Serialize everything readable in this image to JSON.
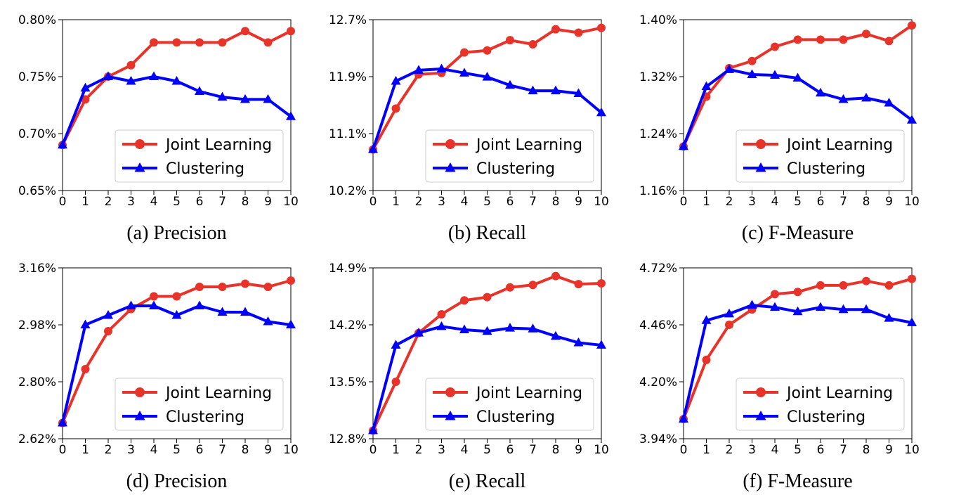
{
  "chart_data": [
    {
      "type": "line",
      "caption": "(a) Precision",
      "x": [
        0,
        1,
        2,
        3,
        4,
        5,
        6,
        7,
        8,
        9,
        10
      ],
      "yticks": [
        "0.65%",
        "0.70%",
        "0.75%",
        "0.80%"
      ],
      "ylim": [
        0.65,
        0.8
      ],
      "series": [
        {
          "name": "Joint Learning",
          "color": "#e8332a",
          "marker": "circle",
          "values": [
            0.69,
            0.73,
            0.75,
            0.76,
            0.78,
            0.78,
            0.78,
            0.78,
            0.79,
            0.78,
            0.79
          ]
        },
        {
          "name": "Clustering",
          "color": "#0000ff",
          "marker": "triangle",
          "values": [
            0.69,
            0.74,
            0.75,
            0.746,
            0.75,
            0.746,
            0.737,
            0.732,
            0.73,
            0.73,
            0.715
          ]
        }
      ],
      "legend": "lower-right",
      "grid": false
    },
    {
      "type": "line",
      "caption": "(b) Recall",
      "x": [
        0,
        1,
        2,
        3,
        4,
        5,
        6,
        7,
        8,
        9,
        10
      ],
      "yticks": [
        "10.2%",
        "11.1%",
        "11.9%",
        "12.7%"
      ],
      "ylim": [
        10.2,
        12.7
      ],
      "series": [
        {
          "name": "Joint Learning",
          "color": "#e8332a",
          "marker": "circle",
          "values": [
            10.8,
            11.4,
            11.9,
            11.92,
            12.22,
            12.25,
            12.4,
            12.34,
            12.56,
            12.51,
            12.58
          ]
        },
        {
          "name": "Clustering",
          "color": "#0000ff",
          "marker": "triangle",
          "values": [
            10.8,
            11.8,
            11.96,
            11.98,
            11.92,
            11.86,
            11.74,
            11.66,
            11.66,
            11.62,
            11.34
          ]
        }
      ],
      "legend": "lower-right",
      "grid": false
    },
    {
      "type": "line",
      "caption": "(c) F-Measure",
      "x": [
        0,
        1,
        2,
        3,
        4,
        5,
        6,
        7,
        8,
        9,
        10
      ],
      "yticks": [
        "1.16%",
        "1.24%",
        "1.32%",
        "1.40%"
      ],
      "ylim": [
        1.16,
        1.4
      ],
      "series": [
        {
          "name": "Joint Learning",
          "color": "#e8332a",
          "marker": "circle",
          "values": [
            1.222,
            1.292,
            1.332,
            1.342,
            1.362,
            1.372,
            1.372,
            1.372,
            1.38,
            1.37,
            1.392
          ]
        },
        {
          "name": "Clustering",
          "color": "#0000ff",
          "marker": "triangle",
          "values": [
            1.222,
            1.306,
            1.33,
            1.323,
            1.322,
            1.318,
            1.297,
            1.288,
            1.29,
            1.283,
            1.259
          ]
        }
      ],
      "legend": "lower-right",
      "grid": false
    },
    {
      "type": "line",
      "caption": "(d) Precision",
      "x": [
        0,
        1,
        2,
        3,
        4,
        5,
        6,
        7,
        8,
        9,
        10
      ],
      "yticks": [
        "2.62%",
        "2.80%",
        "2.98%",
        "3.16%"
      ],
      "ylim": [
        2.62,
        3.16
      ],
      "series": [
        {
          "name": "Joint Learning",
          "color": "#e8332a",
          "marker": "circle",
          "values": [
            2.67,
            2.84,
            2.96,
            3.03,
            3.07,
            3.07,
            3.1,
            3.1,
            3.11,
            3.1,
            3.12
          ]
        },
        {
          "name": "Clustering",
          "color": "#0000ff",
          "marker": "triangle",
          "values": [
            2.67,
            2.98,
            3.01,
            3.04,
            3.04,
            3.01,
            3.04,
            3.02,
            3.02,
            2.99,
            2.98
          ]
        }
      ],
      "legend": "lower-right",
      "grid": false
    },
    {
      "type": "line",
      "caption": "(e) Recall",
      "x": [
        0,
        1,
        2,
        3,
        4,
        5,
        6,
        7,
        8,
        9,
        10
      ],
      "yticks": [
        "12.8%",
        "13.5%",
        "14.2%",
        "14.9%"
      ],
      "ylim": [
        12.8,
        14.9
      ],
      "series": [
        {
          "name": "Joint Learning",
          "color": "#e8332a",
          "marker": "circle",
          "values": [
            12.9,
            13.5,
            14.1,
            14.33,
            14.5,
            14.54,
            14.66,
            14.69,
            14.8,
            14.7,
            14.71
          ]
        },
        {
          "name": "Clustering",
          "color": "#0000ff",
          "marker": "triangle",
          "values": [
            12.9,
            13.95,
            14.1,
            14.18,
            14.14,
            14.12,
            14.16,
            14.15,
            14.06,
            13.98,
            13.95
          ]
        }
      ],
      "legend": "lower-right",
      "grid": false
    },
    {
      "type": "line",
      "caption": "(f) F-Measure",
      "x": [
        0,
        1,
        2,
        3,
        4,
        5,
        6,
        7,
        8,
        9,
        10
      ],
      "yticks": [
        "3.94%",
        "4.20%",
        "4.46%",
        "4.72%"
      ],
      "ylim": [
        3.94,
        4.72
      ],
      "series": [
        {
          "name": "Joint Learning",
          "color": "#e8332a",
          "marker": "circle",
          "values": [
            4.03,
            4.3,
            4.46,
            4.53,
            4.6,
            4.61,
            4.64,
            4.64,
            4.66,
            4.64,
            4.67
          ]
        },
        {
          "name": "Clustering",
          "color": "#0000ff",
          "marker": "triangle",
          "values": [
            4.03,
            4.48,
            4.51,
            4.55,
            4.54,
            4.52,
            4.54,
            4.53,
            4.53,
            4.49,
            4.47
          ]
        }
      ],
      "legend": "lower-right",
      "grid": false
    }
  ]
}
